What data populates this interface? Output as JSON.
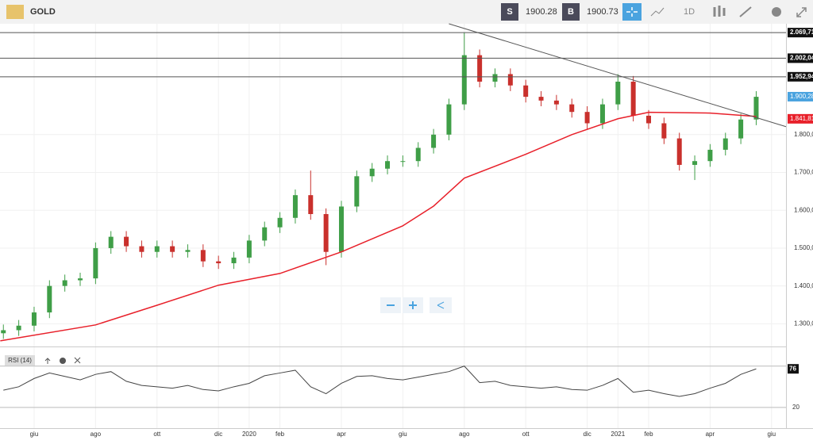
{
  "toolbar": {
    "symbol": "GOLD",
    "sell_label": "S",
    "sell_price": "1900.28",
    "buy_label": "B",
    "buy_price": "1900.73",
    "timeframe": "1D"
  },
  "chart_data": {
    "type": "candlestick",
    "up_color": "#3f9e47",
    "down_color": "#c9302c",
    "xlim": [
      -1.11,
      24.47
    ],
    "ylim": [
      1240,
      2093
    ],
    "grid": true,
    "xticks": [
      {
        "value": 0,
        "label": "giu"
      },
      {
        "value": 2,
        "label": "ago"
      },
      {
        "value": 4,
        "label": "ott"
      },
      {
        "value": 6,
        "label": "dic"
      },
      {
        "value": 7,
        "label": "2020"
      },
      {
        "value": 8,
        "label": "feb"
      },
      {
        "value": 10,
        "label": "apr"
      },
      {
        "value": 12,
        "label": "giu"
      },
      {
        "value": 14,
        "label": "ago"
      },
      {
        "value": 16,
        "label": "ott"
      },
      {
        "value": 18,
        "label": "dic"
      },
      {
        "value": 19,
        "label": "2021"
      },
      {
        "value": 20,
        "label": "feb"
      },
      {
        "value": 22,
        "label": "apr"
      },
      {
        "value": 24,
        "label": "giu"
      }
    ],
    "yticks": [
      {
        "value": 1300,
        "label": "1.300,00"
      },
      {
        "value": 1400,
        "label": "1.400,00"
      },
      {
        "value": 1500,
        "label": "1.500,00"
      },
      {
        "value": 1600,
        "label": "1.600,00"
      },
      {
        "value": 1700,
        "label": "1.700,00"
      },
      {
        "value": 1800,
        "label": "1.800,00"
      }
    ],
    "candles": {
      "x": [
        -1.0,
        -0.5,
        0,
        0.5,
        1.0,
        1.5,
        2.0,
        2.5,
        3.0,
        3.5,
        4.0,
        4.5,
        5.0,
        5.5,
        6.0,
        6.5,
        7.0,
        7.5,
        8.0,
        8.5,
        9.0,
        9.5,
        10.0,
        10.5,
        11.0,
        11.5,
        12.0,
        12.5,
        13.0,
        13.5,
        14.0,
        14.5,
        15.0,
        15.5,
        16.0,
        16.5,
        17.0,
        17.5,
        18.0,
        18.5,
        19.0,
        19.5,
        20.0,
        20.5,
        21.0,
        21.5,
        22.0,
        22.5,
        23.0,
        23.5
      ],
      "open": [
        1275,
        1283,
        1295,
        1330,
        1400,
        1415,
        1420,
        1500,
        1530,
        1505,
        1490,
        1505,
        1490,
        1495,
        1465,
        1460,
        1475,
        1520,
        1555,
        1580,
        1640,
        1590,
        1490,
        1610,
        1690,
        1710,
        1730,
        1730,
        1765,
        1800,
        1880,
        2010,
        1940,
        1960,
        1930,
        1900,
        1890,
        1880,
        1860,
        1830,
        1880,
        1940,
        1850,
        1830,
        1790,
        1720,
        1730,
        1760,
        1790,
        1840
      ],
      "high": [
        1298,
        1310,
        1345,
        1415,
        1430,
        1435,
        1515,
        1545,
        1545,
        1520,
        1520,
        1520,
        1510,
        1510,
        1480,
        1490,
        1535,
        1570,
        1595,
        1655,
        1705,
        1605,
        1625,
        1705,
        1725,
        1745,
        1745,
        1780,
        1815,
        1895,
        2070,
        2025,
        1975,
        1975,
        1945,
        1915,
        1905,
        1895,
        1875,
        1895,
        1960,
        1955,
        1865,
        1845,
        1805,
        1745,
        1775,
        1805,
        1855,
        1915
      ],
      "low": [
        1260,
        1268,
        1280,
        1315,
        1385,
        1400,
        1405,
        1485,
        1490,
        1475,
        1475,
        1475,
        1475,
        1450,
        1445,
        1445,
        1460,
        1505,
        1540,
        1565,
        1575,
        1455,
        1475,
        1595,
        1675,
        1695,
        1715,
        1715,
        1750,
        1785,
        1865,
        1925,
        1925,
        1915,
        1885,
        1875,
        1865,
        1845,
        1815,
        1815,
        1865,
        1835,
        1815,
        1775,
        1705,
        1680,
        1715,
        1745,
        1775,
        1825
      ],
      "close": [
        1283,
        1295,
        1330,
        1400,
        1415,
        1420,
        1500,
        1530,
        1505,
        1490,
        1505,
        1490,
        1495,
        1465,
        1460,
        1475,
        1520,
        1555,
        1580,
        1640,
        1590,
        1490,
        1610,
        1690,
        1710,
        1730,
        1730,
        1765,
        1800,
        1880,
        2010,
        1940,
        1960,
        1930,
        1900,
        1890,
        1880,
        1860,
        1830,
        1880,
        1940,
        1850,
        1830,
        1790,
        1720,
        1730,
        1760,
        1790,
        1840,
        1900
      ]
    },
    "ma": {
      "color": "#e8202a",
      "x": [
        -1.1,
        2,
        4,
        6,
        8,
        10,
        12,
        13,
        14,
        16,
        17.5,
        19,
        20,
        22,
        23.5
      ],
      "values": [
        1255,
        1297,
        1349,
        1402,
        1433,
        1490,
        1559,
        1611,
        1685,
        1748,
        1800,
        1842,
        1859,
        1857,
        1848
      ]
    },
    "trendline": {
      "color": "#555555",
      "x": [
        13.5,
        24.47
      ],
      "values": [
        2093,
        1821
      ]
    },
    "levels": [
      {
        "value": 2069.71,
        "label": "2.069,71"
      },
      {
        "value": 2002.04,
        "label": "2.002,04"
      },
      {
        "value": 1952.94,
        "label": "1.952,94"
      }
    ],
    "price_tag": {
      "value": 1900.28,
      "label": "1.900,28",
      "color": "#4aa3df"
    },
    "ma_tag": {
      "value": 1841.81,
      "label": "1.841,81"
    },
    "rsi": {
      "title": "RSI (14)",
      "ylim": [
        -10,
        105
      ],
      "yticks": [
        20
      ],
      "levels": [
        20,
        80
      ],
      "last": 76,
      "values": [
        45,
        50,
        62,
        70,
        65,
        60,
        68,
        72,
        58,
        52,
        50,
        48,
        52,
        46,
        44,
        50,
        55,
        66,
        70,
        74,
        50,
        40,
        55,
        65,
        66,
        62,
        60,
        64,
        68,
        72,
        80,
        56,
        58,
        52,
        50,
        48,
        50,
        46,
        45,
        52,
        62,
        42,
        45,
        40,
        36,
        40,
        48,
        55,
        68,
        76
      ]
    }
  }
}
